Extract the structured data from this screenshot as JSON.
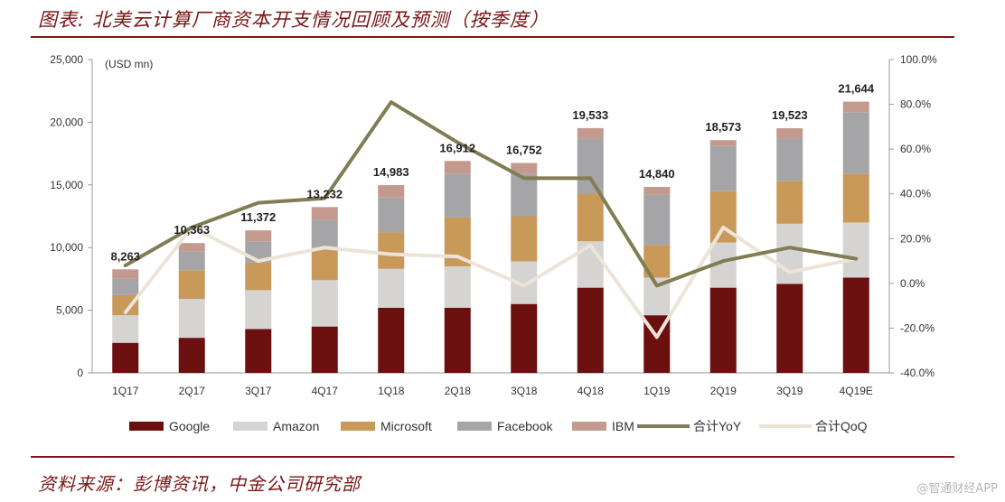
{
  "header": {
    "title": "图表: 北美云计算厂商资本开支情况回顾及预测（按季度）"
  },
  "footer": {
    "source": "资料来源：彭博资讯，中金公司研究部",
    "watermark": "@智通财经APP"
  },
  "chart_data": {
    "type": "bar",
    "stacked": true,
    "categories": [
      "1Q17",
      "2Q17",
      "3Q17",
      "4Q17",
      "1Q18",
      "2Q18",
      "3Q18",
      "4Q18",
      "1Q19",
      "2Q19",
      "3Q19",
      "4Q19E"
    ],
    "unit_label": "(USD mn)",
    "ylim": [
      0,
      25000
    ],
    "y_ticks": [
      "0",
      "5,000",
      "10,000",
      "15,000",
      "20,000",
      "25,000"
    ],
    "y2lim": [
      -0.4,
      1.0
    ],
    "y2_ticks": [
      "-40.0%",
      "-20.0%",
      "0.0%",
      "20.0%",
      "40.0%",
      "60.0%",
      "80.0%",
      "100.0%"
    ],
    "series": [
      {
        "name": "Google",
        "kind": "bar",
        "color": "#6b0f0f",
        "values": [
          2400,
          2800,
          3500,
          3700,
          5200,
          5200,
          5500,
          6800,
          4600,
          6800,
          7100,
          7600
        ]
      },
      {
        "name": "Amazon",
        "kind": "bar",
        "color": "#d6d4d2",
        "values": [
          2200,
          3100,
          3100,
          3700,
          3100,
          3300,
          3400,
          3700,
          3000,
          3600,
          4800,
          4400
        ]
      },
      {
        "name": "Microsoft",
        "kind": "bar",
        "color": "#c9995a",
        "values": [
          1600,
          2300,
          2200,
          2500,
          2900,
          3900,
          3600,
          3800,
          2600,
          4100,
          3400,
          3900
        ]
      },
      {
        "name": "Facebook",
        "kind": "bar",
        "color": "#a5a5a8",
        "values": [
          1300,
          1500,
          1700,
          2300,
          2800,
          3500,
          3400,
          4400,
          4000,
          3600,
          3400,
          4900
        ]
      },
      {
        "name": "IBM",
        "kind": "bar",
        "color": "#c49a8f",
        "values": [
          763,
          663,
          872,
          1032,
          983,
          1012,
          852,
          833,
          640,
          473,
          823,
          844
        ]
      },
      {
        "name": "合计YoY",
        "kind": "line",
        "axis": "right",
        "color": "#807d54",
        "values": [
          0.08,
          0.25,
          0.36,
          0.38,
          0.81,
          0.63,
          0.47,
          0.47,
          -0.01,
          0.1,
          0.16,
          0.11
        ]
      },
      {
        "name": "合计QoQ",
        "kind": "line",
        "axis": "right",
        "color": "#ece4d7",
        "values": [
          -0.13,
          0.25,
          0.1,
          0.16,
          0.13,
          0.12,
          -0.01,
          0.17,
          -0.24,
          0.25,
          0.05,
          0.11
        ]
      }
    ],
    "totals": [
      "8,263",
      "10,363",
      "11,372",
      "13,232",
      "14,983",
      "16,912",
      "16,752",
      "19,533",
      "14,840",
      "18,573",
      "19,523",
      "21,644"
    ],
    "grid": false,
    "legend_position": "bottom"
  }
}
